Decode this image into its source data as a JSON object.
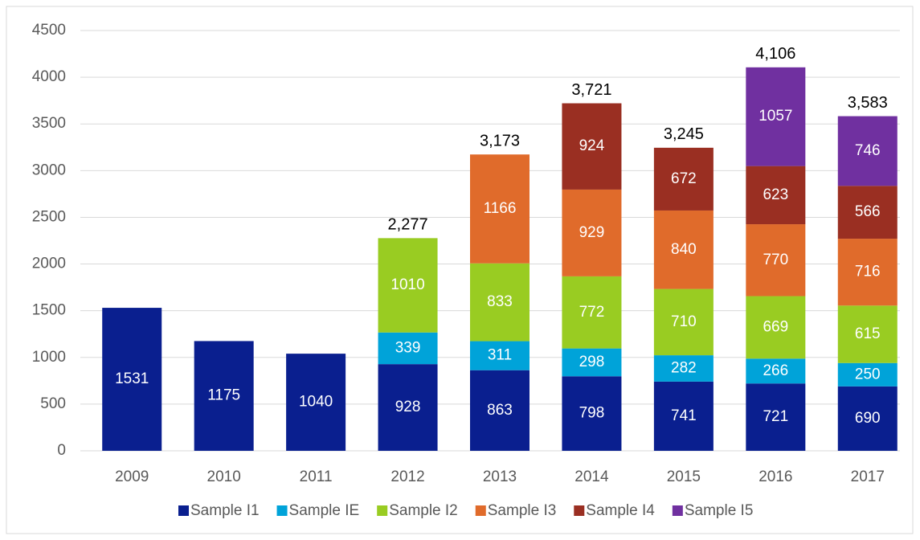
{
  "chart_data": {
    "type": "stacked_bar",
    "categories": [
      "2009",
      "2010",
      "2011",
      "2012",
      "2013",
      "2014",
      "2015",
      "2016",
      "2017"
    ],
    "series": [
      {
        "name": "Sample I1",
        "color": "#0a1f8f",
        "values": [
          1531,
          1175,
          1040,
          928,
          863,
          798,
          741,
          721,
          690
        ]
      },
      {
        "name": "Sample IE",
        "color": "#00a3d9",
        "values": [
          null,
          null,
          null,
          339,
          311,
          298,
          282,
          266,
          250
        ]
      },
      {
        "name": "Sample I2",
        "color": "#99cc22",
        "values": [
          null,
          null,
          null,
          1010,
          833,
          772,
          710,
          669,
          615
        ]
      },
      {
        "name": "Sample I3",
        "color": "#e06b2b",
        "values": [
          null,
          null,
          null,
          null,
          1166,
          929,
          840,
          770,
          716
        ]
      },
      {
        "name": "Sample I4",
        "color": "#9a2f22",
        "values": [
          null,
          null,
          null,
          null,
          null,
          924,
          672,
          623,
          566
        ]
      },
      {
        "name": "Sample I5",
        "color": "#7030a0",
        "values": [
          null,
          null,
          null,
          null,
          null,
          null,
          null,
          1057,
          746
        ]
      }
    ],
    "totals": {
      "values": [
        null,
        null,
        null,
        2277,
        3173,
        3721,
        3245,
        4106,
        3583
      ],
      "value_labels": [
        null,
        null,
        null,
        "2,277",
        "3,173",
        "3,721",
        "3,245",
        "4,106",
        "3,583"
      ]
    },
    "ylim": [
      0,
      4500
    ],
    "yticks": [
      0,
      500,
      1000,
      1500,
      2000,
      2500,
      3000,
      3500,
      4000,
      4500
    ],
    "grid": true,
    "legend": "bottom"
  }
}
